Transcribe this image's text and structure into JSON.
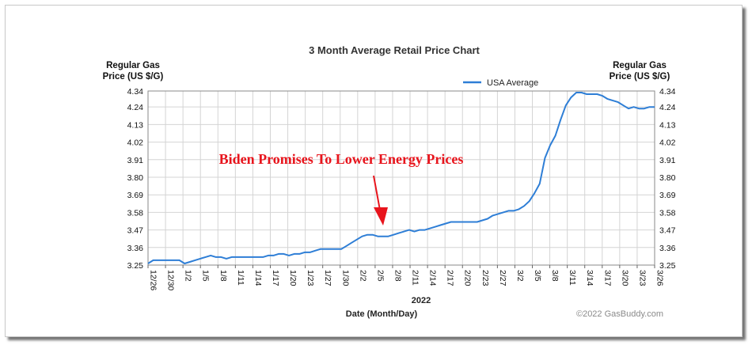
{
  "chart_data": {
    "type": "line",
    "title": "3 Month Average Retail Price Chart",
    "ylabel_left": [
      "Regular Gas",
      "Price (US $/G)"
    ],
    "ylabel_right": [
      "Regular Gas",
      "Price (US $/G)"
    ],
    "xlabel_year": "2022",
    "xlabel": "Date (Month/Day)",
    "credit": "©2022 GasBuddy.com",
    "annotation": "Biden Promises To Lower Energy Prices",
    "legend_position": "top-right",
    "grid": true,
    "ylim": [
      3.25,
      4.34
    ],
    "yticks": [
      "3.25",
      "3.36",
      "3.47",
      "3.58",
      "3.69",
      "3.80",
      "3.91",
      "4.02",
      "4.13",
      "4.24",
      "4.34"
    ],
    "xticks": [
      "12/26",
      "12/30",
      "1/2",
      "1/5",
      "1/8",
      "1/11",
      "1/14",
      "1/17",
      "1/20",
      "1/23",
      "1/27",
      "1/30",
      "2/2",
      "2/5",
      "2/8",
      "2/11",
      "2/14",
      "2/17",
      "2/20",
      "2/23",
      "2/27",
      "3/2",
      "3/5",
      "3/8",
      "3/11",
      "3/14",
      "3/17",
      "3/20",
      "3/23",
      "3/26"
    ],
    "series": [
      {
        "name": "USA Average",
        "color": "#2e7ed6",
        "x_start": "12/26",
        "x_end": "3/26",
        "values": [
          3.26,
          3.28,
          3.28,
          3.28,
          3.28,
          3.28,
          3.28,
          3.26,
          3.27,
          3.28,
          3.29,
          3.3,
          3.31,
          3.3,
          3.3,
          3.29,
          3.3,
          3.3,
          3.3,
          3.3,
          3.3,
          3.3,
          3.3,
          3.31,
          3.31,
          3.32,
          3.32,
          3.31,
          3.32,
          3.32,
          3.33,
          3.33,
          3.34,
          3.35,
          3.35,
          3.35,
          3.35,
          3.35,
          3.37,
          3.39,
          3.41,
          3.43,
          3.44,
          3.44,
          3.43,
          3.43,
          3.43,
          3.44,
          3.45,
          3.46,
          3.47,
          3.46,
          3.47,
          3.47,
          3.48,
          3.49,
          3.5,
          3.51,
          3.52,
          3.52,
          3.52,
          3.52,
          3.52,
          3.52,
          3.53,
          3.54,
          3.56,
          3.57,
          3.58,
          3.59,
          3.59,
          3.6,
          3.62,
          3.65,
          3.7,
          3.76,
          3.92,
          4.0,
          4.06,
          4.16,
          4.25,
          4.3,
          4.33,
          4.33,
          4.32,
          4.32,
          4.32,
          4.31,
          4.29,
          4.28,
          4.27,
          4.25,
          4.23,
          4.24,
          4.23,
          4.23,
          4.24,
          4.24
        ]
      }
    ]
  }
}
